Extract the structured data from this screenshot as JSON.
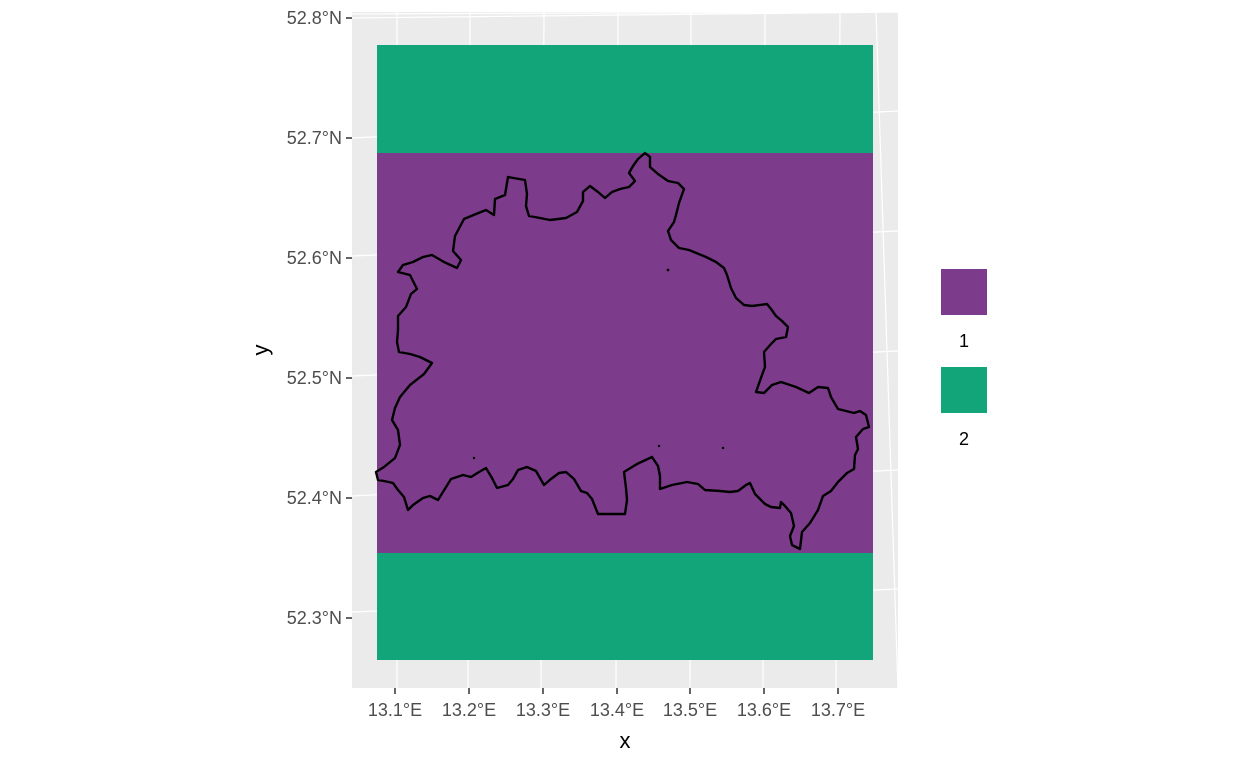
{
  "chart_data": {
    "type": "map",
    "title": "",
    "xlabel": "x",
    "ylabel": "y",
    "x_ticks": [
      "13.1°E",
      "13.2°E",
      "13.3°E",
      "13.4°E",
      "13.5°E",
      "13.6°E",
      "13.7°E"
    ],
    "y_ticks": [
      "52.3°N",
      "52.4°N",
      "52.5°N",
      "52.6°N",
      "52.7°N",
      "52.8°N"
    ],
    "xlim": [
      13.05,
      13.75
    ],
    "ylim": [
      52.25,
      52.8
    ],
    "raster_bands": [
      {
        "class": "2",
        "lat_min": 52.265,
        "lat_max": 52.353,
        "lon_min": 13.077,
        "lon_max": 13.745
      },
      {
        "class": "1",
        "lat_min": 52.353,
        "lat_max": 52.686,
        "lon_min": 13.077,
        "lon_max": 13.745
      },
      {
        "class": "2",
        "lat_min": 52.686,
        "lat_max": 52.776,
        "lon_min": 13.077,
        "lon_max": 13.745
      }
    ],
    "legend": {
      "placement": "right",
      "entries": [
        {
          "label": "1",
          "color": "#7d3c8b"
        },
        {
          "label": "2",
          "color": "#13a57a"
        }
      ]
    },
    "outline": "Berlin boundary",
    "panel_background": "#ebebeb",
    "grid_color": "#ffffff",
    "outline_color": "#000000"
  }
}
